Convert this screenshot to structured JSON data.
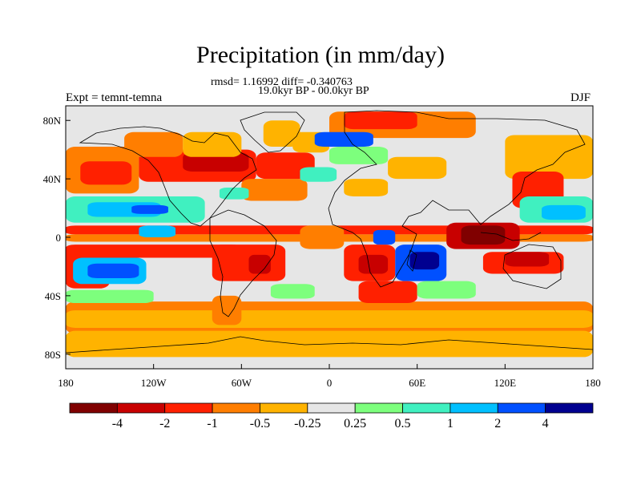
{
  "chart_data": {
    "type": "heatmap",
    "title": "Precipitation (in mm/day)",
    "stats_text": "rmsd= 1.16992 diff= -0.340763",
    "period_text": "19.0kyr BP - 00.0kyr BP",
    "left_label": "Expt = temnt-temna",
    "right_label": "DJF",
    "x_range": [
      -180,
      180
    ],
    "y_range": [
      -90,
      90
    ],
    "x_ticks": [
      {
        "value": -180,
        "label": "180"
      },
      {
        "value": -120,
        "label": "120W"
      },
      {
        "value": -60,
        "label": "60W"
      },
      {
        "value": 0,
        "label": "0"
      },
      {
        "value": 60,
        "label": "60E"
      },
      {
        "value": 120,
        "label": "120E"
      },
      {
        "value": 180,
        "label": "180"
      }
    ],
    "y_ticks": [
      {
        "value": 80,
        "label": "80N"
      },
      {
        "value": 40,
        "label": "40N"
      },
      {
        "value": 0,
        "label": "0"
      },
      {
        "value": -40,
        "label": "40S"
      },
      {
        "value": -80,
        "label": "80S"
      }
    ],
    "colorbar": {
      "colors": [
        "#800000",
        "#c80000",
        "#ff2000",
        "#ff7e00",
        "#ffb300",
        "#e6e6e6",
        "#7dff7d",
        "#40f0c0",
        "#00c0ff",
        "#0050ff",
        "#000090"
      ],
      "labels": [
        "-4",
        "-2",
        "-1",
        "-0.5",
        "-0.25",
        "0.25",
        "0.5",
        "1",
        "2",
        "4"
      ]
    },
    "regions": [
      {
        "lon": [
          -180,
          180
        ],
        "lat": [
          -66,
          -44
        ],
        "bin": 3
      },
      {
        "lon": [
          -180,
          180
        ],
        "lat": [
          -62,
          -50
        ],
        "bin": 4
      },
      {
        "lon": [
          -180,
          180
        ],
        "lat": [
          -82,
          -64
        ],
        "bin": 4
      },
      {
        "lon": [
          -180,
          180
        ],
        "lat": [
          2,
          8
        ],
        "bin": 2
      },
      {
        "lon": [
          -180,
          180
        ],
        "lat": [
          -3,
          2
        ],
        "bin": 3
      },
      {
        "lon": [
          -180,
          -60
        ],
        "lat": [
          -14,
          -5
        ],
        "bin": 2
      },
      {
        "lon": [
          -180,
          -150
        ],
        "lat": [
          -35,
          -8
        ],
        "bin": 2
      },
      {
        "lon": [
          -175,
          -125
        ],
        "lat": [
          -32,
          -14
        ],
        "bin": 8
      },
      {
        "lon": [
          -165,
          -130
        ],
        "lat": [
          -28,
          -18
        ],
        "bin": 9
      },
      {
        "lon": [
          -180,
          -85
        ],
        "lat": [
          10,
          28
        ],
        "bin": 7
      },
      {
        "lon": [
          -165,
          -115
        ],
        "lat": [
          14,
          24
        ],
        "bin": 8
      },
      {
        "lon": [
          -135,
          -110
        ],
        "lat": [
          16,
          22
        ],
        "bin": 9
      },
      {
        "lon": [
          -180,
          -130
        ],
        "lat": [
          30,
          62
        ],
        "bin": 3
      },
      {
        "lon": [
          -170,
          -135
        ],
        "lat": [
          36,
          52
        ],
        "bin": 2
      },
      {
        "lon": [
          -130,
          -50
        ],
        "lat": [
          38,
          60
        ],
        "bin": 2
      },
      {
        "lon": [
          -100,
          -55
        ],
        "lat": [
          45,
          58
        ],
        "bin": 1
      },
      {
        "lon": [
          -140,
          -100
        ],
        "lat": [
          55,
          72
        ],
        "bin": 3
      },
      {
        "lon": [
          -100,
          -60
        ],
        "lat": [
          55,
          72
        ],
        "bin": 4
      },
      {
        "lon": [
          -60,
          -15
        ],
        "lat": [
          25,
          40
        ],
        "bin": 3
      },
      {
        "lon": [
          -75,
          -55
        ],
        "lat": [
          26,
          34
        ],
        "bin": 7
      },
      {
        "lon": [
          -50,
          -10
        ],
        "lat": [
          40,
          58
        ],
        "bin": 2
      },
      {
        "lon": [
          -25,
          0
        ],
        "lat": [
          58,
          72
        ],
        "bin": 4
      },
      {
        "lon": [
          -45,
          -20
        ],
        "lat": [
          62,
          80
        ],
        "bin": 4
      },
      {
        "lon": [
          0,
          100
        ],
        "lat": [
          68,
          86
        ],
        "bin": 3
      },
      {
        "lon": [
          10,
          60
        ],
        "lat": [
          74,
          86
        ],
        "bin": 2
      },
      {
        "lon": [
          -10,
          30
        ],
        "lat": [
          62,
          72
        ],
        "bin": 9
      },
      {
        "lon": [
          0,
          40
        ],
        "lat": [
          50,
          62
        ],
        "bin": 6
      },
      {
        "lon": [
          -20,
          5
        ],
        "lat": [
          38,
          48
        ],
        "bin": 7
      },
      {
        "lon": [
          40,
          80
        ],
        "lat": [
          40,
          55
        ],
        "bin": 4
      },
      {
        "lon": [
          10,
          40
        ],
        "lat": [
          28,
          40
        ],
        "bin": 4
      },
      {
        "lon": [
          120,
          180
        ],
        "lat": [
          40,
          70
        ],
        "bin": 4
      },
      {
        "lon": [
          125,
          160
        ],
        "lat": [
          20,
          45
        ],
        "bin": 2
      },
      {
        "lon": [
          130,
          180
        ],
        "lat": [
          10,
          28
        ],
        "bin": 7
      },
      {
        "lon": [
          145,
          175
        ],
        "lat": [
          12,
          22
        ],
        "bin": 8
      },
      {
        "lon": [
          80,
          130
        ],
        "lat": [
          -8,
          10
        ],
        "bin": 1
      },
      {
        "lon": [
          90,
          120
        ],
        "lat": [
          -5,
          8
        ],
        "bin": 0
      },
      {
        "lon": [
          105,
          160
        ],
        "lat": [
          -25,
          -10
        ],
        "bin": 2
      },
      {
        "lon": [
          120,
          150
        ],
        "lat": [
          -20,
          -10
        ],
        "bin": 1
      },
      {
        "lon": [
          -80,
          -30
        ],
        "lat": [
          -30,
          -5
        ],
        "bin": 2
      },
      {
        "lon": [
          -55,
          -40
        ],
        "lat": [
          -25,
          -12
        ],
        "bin": 1
      },
      {
        "lon": [
          -80,
          -60
        ],
        "lat": [
          -60,
          -40
        ],
        "bin": 3
      },
      {
        "lon": [
          10,
          45
        ],
        "lat": [
          -30,
          -5
        ],
        "bin": 2
      },
      {
        "lon": [
          20,
          40
        ],
        "lat": [
          -25,
          -12
        ],
        "bin": 1
      },
      {
        "lon": [
          45,
          80
        ],
        "lat": [
          -30,
          -5
        ],
        "bin": 9
      },
      {
        "lon": [
          55,
          75
        ],
        "lat": [
          -22,
          -10
        ],
        "bin": 10
      },
      {
        "lon": [
          30,
          45
        ],
        "lat": [
          -5,
          5
        ],
        "bin": 9
      },
      {
        "lon": [
          20,
          60
        ],
        "lat": [
          -45,
          -30
        ],
        "bin": 2
      },
      {
        "lon": [
          60,
          100
        ],
        "lat": [
          -42,
          -30
        ],
        "bin": 6
      },
      {
        "lon": [
          -40,
          -10
        ],
        "lat": [
          -42,
          -32
        ],
        "bin": 6
      },
      {
        "lon": [
          -180,
          -120
        ],
        "lat": [
          -45,
          -36
        ],
        "bin": 6
      },
      {
        "lon": [
          -20,
          10
        ],
        "lat": [
          -8,
          8
        ],
        "bin": 3
      },
      {
        "lon": [
          -130,
          -105
        ],
        "lat": [
          0,
          8
        ],
        "bin": 8
      }
    ]
  }
}
